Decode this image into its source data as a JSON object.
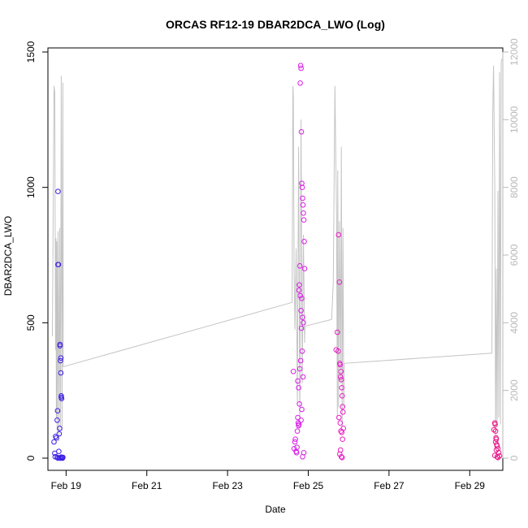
{
  "chart_data": {
    "type": "scatter",
    "title": "ORCAS RF12-19 DBAR2DCA_LWO (Log)",
    "xlabel": "Date",
    "ylabel": "DBAR2DCA_LWO",
    "x_ticks": [
      "Feb 19",
      "Feb 21",
      "Feb 23",
      "Feb 25",
      "Feb 27",
      "Feb 29"
    ],
    "x_tick_days": [
      19,
      21,
      23,
      25,
      27,
      29
    ],
    "xlim": [
      18.55,
      29.82
    ],
    "y_ticks": [
      0,
      500,
      1000,
      1500
    ],
    "ylim": [
      -45,
      1515
    ],
    "y2_ticks": [
      0,
      2000,
      4000,
      6000,
      8000,
      10000,
      12000
    ],
    "y2lim": [
      -360,
      12120
    ],
    "grid": false,
    "colors": {
      "rf12": "#3b1ee6",
      "rf13": "#d81fe6",
      "rf14": "#e81ec4",
      "rf15": "#e8188a",
      "altitude_line": "#c4c4c4"
    },
    "series": [
      {
        "color_key": "rf12",
        "x": [
          18.7,
          18.72,
          18.74,
          18.76,
          18.78,
          18.79,
          18.8,
          18.8,
          18.81,
          18.82,
          18.83,
          18.84,
          18.85,
          18.85,
          18.86,
          18.87,
          18.87,
          18.88,
          18.88,
          18.89,
          18.9,
          18.91,
          18.92,
          18.8,
          18.84,
          18.86,
          18.88,
          18.9,
          18.73,
          18.78
        ],
        "y": [
          60,
          18,
          80,
          75,
          140,
          175,
          985,
          715,
          715,
          25,
          90,
          110,
          420,
          415,
          360,
          370,
          315,
          225,
          230,
          220,
          2,
          0,
          3,
          0,
          1,
          0,
          4,
          2,
          5,
          3
        ]
      },
      {
        "color_key": "rf13",
        "x": [
          24.63,
          24.65,
          24.67,
          24.68,
          24.7,
          24.71,
          24.72,
          24.73,
          24.74,
          24.75,
          24.76,
          24.77,
          24.78,
          24.79,
          24.8,
          24.81,
          24.82,
          24.83,
          24.84,
          24.85,
          24.86,
          24.87,
          24.88,
          24.89,
          24.9,
          24.91,
          24.77,
          24.8,
          24.82,
          24.84,
          24.86,
          24.88,
          24.83,
          24.85,
          24.81,
          24.79,
          24.87,
          24.74,
          24.76,
          24.78,
          24.84,
          24.82,
          24.89,
          24.86
        ],
        "y": [
          320,
          35,
          60,
          70,
          25,
          20,
          40,
          100,
          150,
          130,
          120,
          125,
          640,
          710,
          1385,
          1450,
          1440,
          1205,
          1015,
          1000,
          960,
          935,
          905,
          880,
          800,
          700,
          620,
          600,
          545,
          590,
          520,
          500,
          480,
          395,
          360,
          330,
          300,
          285,
          260,
          200,
          180,
          140,
          20,
          5
        ]
      },
      {
        "color_key": "rf14",
        "x": [
          25.69,
          25.72,
          25.74,
          25.75,
          25.77,
          25.78,
          25.79,
          25.8,
          25.81,
          25.82,
          25.83,
          25.84,
          25.85,
          25.86,
          25.87,
          25.76,
          25.79,
          25.81,
          25.83,
          25.85,
          25.8,
          25.78,
          25.82,
          25.84
        ],
        "y": [
          400,
          465,
          395,
          825,
          650,
          350,
          345,
          300,
          320,
          290,
          260,
          230,
          190,
          170,
          110,
          150,
          130,
          100,
          95,
          70,
          30,
          15,
          5,
          2
        ]
      },
      {
        "color_key": "rf15",
        "x": [
          29.6,
          29.62,
          29.63,
          29.64,
          29.65,
          29.66,
          29.67,
          29.68,
          29.7,
          29.72,
          29.74,
          29.64,
          29.66,
          29.62,
          29.68,
          29.7
        ],
        "y": [
          105,
          130,
          125,
          100,
          75,
          70,
          50,
          45,
          35,
          20,
          8,
          60,
          30,
          10,
          5,
          2
        ]
      }
    ],
    "secondary_series": {
      "name_key": "altitude_line",
      "x": [
        18.66,
        18.7,
        18.72,
        18.74,
        18.75,
        18.76,
        18.77,
        18.78,
        18.8,
        18.82,
        18.84,
        18.86,
        18.88,
        18.9,
        18.92,
        18.93,
        24.6,
        24.62,
        24.63,
        24.65,
        24.67,
        24.7,
        24.73,
        24.76,
        24.79,
        24.82,
        24.85,
        24.88,
        24.91,
        24.92,
        25.58,
        25.62,
        25.66,
        25.7,
        25.72,
        25.73,
        25.75,
        25.77,
        25.8,
        25.82,
        25.84,
        25.86,
        25.88,
        25.89,
        29.55,
        29.57,
        29.59,
        29.62,
        29.64,
        29.66,
        29.68,
        29.7,
        29.72,
        29.74,
        29.76,
        29.78,
        29.8
      ],
      "y": [
        3600,
        11000,
        10800,
        3200,
        6500,
        1200,
        6400,
        800,
        6700,
        500,
        6800,
        900,
        11300,
        800,
        11100,
        2700,
        4600,
        11000,
        10700,
        5500,
        3800,
        6200,
        1600,
        9200,
        1000,
        10000,
        2200,
        6600,
        3400,
        3900,
        4100,
        5200,
        11000,
        7200,
        1200,
        8500,
        1500,
        7000,
        2200,
        9200,
        900,
        6800,
        1500,
        2800,
        3100,
        10200,
        11600,
        8000,
        600,
        5600,
        900,
        7900,
        1200,
        11400,
        1000,
        11700,
        11800
      ]
    }
  }
}
